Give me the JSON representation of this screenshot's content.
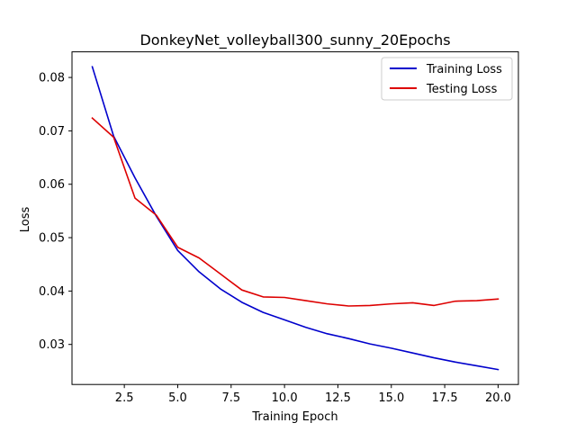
{
  "chart_data": {
    "type": "line",
    "title": "DonkeyNet_volleyball300_sunny_20Epochs",
    "xlabel": "Training Epoch",
    "ylabel": "Loss",
    "xlim": [
      0.05,
      20.95
    ],
    "ylim": [
      0.0225,
      0.0848
    ],
    "xticks": [
      2.5,
      5.0,
      7.5,
      10.0,
      12.5,
      15.0,
      17.5,
      20.0
    ],
    "xtick_labels": [
      "2.5",
      "5.0",
      "7.5",
      "10.0",
      "12.5",
      "15.0",
      "17.5",
      "20.0"
    ],
    "yticks": [
      0.03,
      0.04,
      0.05,
      0.06,
      0.07,
      0.08
    ],
    "ytick_labels": [
      "0.03",
      "0.04",
      "0.05",
      "0.06",
      "0.07",
      "0.08"
    ],
    "grid": false,
    "legend_position": "top-right",
    "x": [
      1,
      2,
      3,
      4,
      5,
      6,
      7,
      8,
      9,
      10,
      11,
      12,
      13,
      14,
      15,
      16,
      17,
      18,
      19,
      20
    ],
    "series": [
      {
        "name": "Training Loss",
        "color": "#0000cc",
        "values": [
          0.082,
          0.069,
          0.0612,
          0.054,
          0.0476,
          0.0436,
          0.0404,
          0.0379,
          0.036,
          0.0346,
          0.0332,
          0.032,
          0.0311,
          0.0301,
          0.0293,
          0.0284,
          0.0275,
          0.0267,
          0.026,
          0.0253
        ]
      },
      {
        "name": "Testing Loss",
        "color": "#dd0000",
        "values": [
          0.0724,
          0.0688,
          0.0574,
          0.0542,
          0.0482,
          0.0462,
          0.0432,
          0.0402,
          0.0389,
          0.0388,
          0.0382,
          0.0376,
          0.0372,
          0.0373,
          0.0376,
          0.0378,
          0.0373,
          0.0381,
          0.0382,
          0.0385
        ]
      }
    ]
  }
}
